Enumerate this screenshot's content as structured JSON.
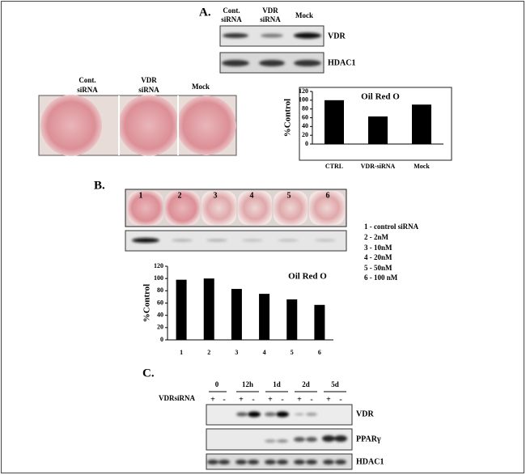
{
  "panel_a": {
    "label": "A.",
    "blot_lanes": [
      [
        "Cont.",
        "siRNA"
      ],
      [
        "VDR",
        "siRNA"
      ],
      [
        "Mock"
      ]
    ],
    "blot_labels": [
      "VDR",
      "HDAC1"
    ],
    "plate_labels": [
      [
        "Cont.",
        "siRNA"
      ],
      [
        "VDR",
        "siRNA"
      ],
      [
        "Mock"
      ]
    ]
  },
  "panel_b": {
    "label": "B.",
    "well_numbers": [
      "1",
      "2",
      "3",
      "4",
      "5",
      "6"
    ],
    "legend": [
      "1 - control siRNA",
      "2 - 2nM",
      "3 - 10nM",
      "4 - 20nM",
      "5 - 50nM",
      "6 - 100 nM"
    ]
  },
  "panel_c": {
    "label": "C.",
    "timepoints": [
      "0",
      "12h",
      "1d",
      "2d",
      "5d"
    ],
    "row_label": "VDRsiRNA",
    "signs": [
      "+",
      "-",
      "+",
      "-",
      "+",
      "-",
      "+",
      "-",
      "+",
      "-"
    ],
    "blot_labels": [
      "VDR",
      "PPARγ",
      "HDAC1"
    ]
  },
  "chart_data": [
    {
      "type": "bar",
      "title": "Oil Red O",
      "y_label": "%Control",
      "categories": [
        "CTRL",
        "VDR-siRNA",
        "Mock"
      ],
      "values": [
        100,
        63,
        90
      ],
      "color": "#000000",
      "ylim": [
        0,
        120
      ],
      "yticks": [
        0,
        20,
        40,
        60,
        80,
        100,
        120
      ]
    },
    {
      "type": "bar",
      "title": "Oil Red O",
      "y_label": "%Control",
      "categories": [
        "1",
        "2",
        "3",
        "4",
        "5",
        "6"
      ],
      "values": [
        98,
        100,
        83,
        75,
        66,
        57
      ],
      "color": "#000000",
      "ylim": [
        0,
        120
      ],
      "yticks": [
        0,
        20,
        40,
        60,
        80,
        100,
        120
      ]
    }
  ]
}
